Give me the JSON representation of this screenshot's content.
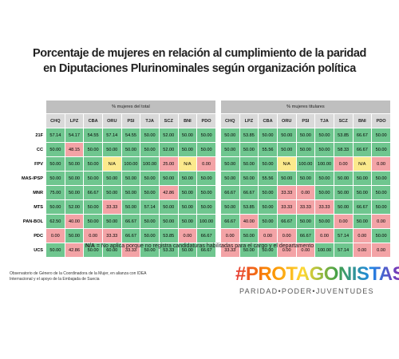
{
  "header": {
    "title_line1": "Porcentaje de mujeres en relación al cumplimiento de la paridad",
    "title_line2": "en Diputaciones Plurinominales según organización política"
  },
  "table": {
    "groups": [
      "% mujeres del total",
      "% mujeres titulares"
    ],
    "columns": [
      "CHQ",
      "LPZ",
      "CBA",
      "ORU",
      "PSI",
      "TJA",
      "SCZ",
      "BNI",
      "PDO"
    ],
    "rows": [
      {
        "label": "21F",
        "total": [
          "57.14",
          "54.17",
          "54.55",
          "57.14",
          "54.55",
          "50.00",
          "52.00",
          "50.00",
          "50.00"
        ],
        "titulares": [
          "50.00",
          "53.85",
          "50.00",
          "50.00",
          "50.00",
          "50.00",
          "53.85",
          "66.67",
          "50.00"
        ]
      },
      {
        "label": "CC",
        "total": [
          "50.00",
          "48.15",
          "50.00",
          "50.00",
          "50.00",
          "50.00",
          "52.00",
          "50.00",
          "50.00"
        ],
        "titulares": [
          "50.00",
          "50.00",
          "55.56",
          "50.00",
          "50.00",
          "50.00",
          "58.33",
          "66.67",
          "50.00"
        ]
      },
      {
        "label": "FPV",
        "total": [
          "50.00",
          "50.00",
          "50.00",
          "N/A",
          "100.00",
          "100.00",
          "25.00",
          "N/A",
          "0.00"
        ],
        "titulares": [
          "50.00",
          "50.00",
          "50.00",
          "N/A",
          "100.00",
          "100.00",
          "0.00",
          "N/A",
          "0.00"
        ]
      },
      {
        "label": "MAS-IPSP",
        "total": [
          "50.00",
          "50.00",
          "50.00",
          "50.00",
          "50.00",
          "50.00",
          "50.00",
          "50.00",
          "50.00"
        ],
        "titulares": [
          "50.00",
          "50.00",
          "55.56",
          "50.00",
          "50.00",
          "50.00",
          "50.00",
          "50.00",
          "50.00"
        ]
      },
      {
        "label": "MNR",
        "total": [
          "75.00",
          "50.00",
          "66.67",
          "50.00",
          "50.00",
          "50.00",
          "42.86",
          "50.00",
          "50.00"
        ],
        "titulares": [
          "66.67",
          "66.67",
          "50.00",
          "33.33",
          "0.00",
          "50.00",
          "50.00",
          "50.00",
          "50.00"
        ]
      },
      {
        "label": "MTS",
        "total": [
          "50.00",
          "52.00",
          "50.00",
          "33.33",
          "50.00",
          "57.14",
          "50.00",
          "50.00",
          "50.00"
        ],
        "titulares": [
          "50.00",
          "53.85",
          "50.00",
          "33.33",
          "33.33",
          "33.33",
          "50.00",
          "66.67",
          "50.00"
        ]
      },
      {
        "label": "PAN-BOL",
        "total": [
          "62.50",
          "40.00",
          "50.00",
          "50.00",
          "66.67",
          "50.00",
          "50.00",
          "50.00",
          "100.00"
        ],
        "titulares": [
          "66.67",
          "40.00",
          "50.00",
          "66.67",
          "50.00",
          "50.00",
          "0.00",
          "50.00",
          "0.00"
        ]
      },
      {
        "label": "PDC",
        "total": [
          "0.00",
          "50.00",
          "0.00",
          "33.33",
          "66.67",
          "50.00",
          "53.85",
          "0.00",
          "66.67"
        ],
        "titulares": [
          "0.00",
          "50.00",
          "0.00",
          "0.00",
          "66.67",
          "0.00",
          "57.14",
          "0.00",
          "50.00"
        ]
      },
      {
        "label": "UCS",
        "total": [
          "50.00",
          "42.86",
          "50.00",
          "60.00",
          "33.33",
          "50.00",
          "53.33",
          "50.00",
          "66.67"
        ],
        "titulares": [
          "33.33",
          "50.00",
          "50.00",
          "0.00",
          "0.00",
          "100.00",
          "57.14",
          "0.00",
          "0.00"
        ]
      }
    ]
  },
  "note": {
    "key": "N/A",
    "text": " = No aplica porque no registra candidaturas habilitadas para el cargo y el departamento"
  },
  "footer": {
    "source": "Observatorio de Género de la Coordinadora de la Mujer, en alianza con IDEA Internacional y el apoyo de la Embajada de Suecia",
    "brand": "#PROTAGONISTAS",
    "tagline": "PARIDAD•PODER•JUVENTUDES"
  }
}
